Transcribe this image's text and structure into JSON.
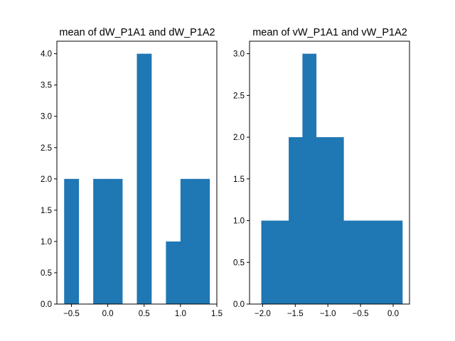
{
  "chart_data": [
    {
      "type": "bar",
      "title": "mean of dW_P1A1 and dW_P1A2",
      "xlabel": "",
      "ylabel": "",
      "xlim": [
        -0.7,
        1.5
      ],
      "ylim": [
        0,
        4.2
      ],
      "xticks": [
        -0.5,
        0.0,
        0.5,
        1.0,
        1.5
      ],
      "xtick_labels": [
        "−0.5",
        "0.0",
        "0.5",
        "1.0",
        "1.5"
      ],
      "yticks": [
        0.0,
        0.5,
        1.0,
        1.5,
        2.0,
        2.5,
        3.0,
        3.5,
        4.0
      ],
      "ytick_labels": [
        "0.0",
        "0.5",
        "1.0",
        "1.5",
        "2.0",
        "2.5",
        "3.0",
        "3.5",
        "4.0"
      ],
      "bins": [
        {
          "x0": -0.6,
          "x1": -0.4,
          "count": 2
        },
        {
          "x0": -0.4,
          "x1": -0.2,
          "count": 0
        },
        {
          "x0": -0.2,
          "x1": 0.0,
          "count": 2
        },
        {
          "x0": 0.0,
          "x1": 0.2,
          "count": 2
        },
        {
          "x0": 0.2,
          "x1": 0.4,
          "count": 0
        },
        {
          "x0": 0.4,
          "x1": 0.6,
          "count": 4
        },
        {
          "x0": 0.6,
          "x1": 0.8,
          "count": 0
        },
        {
          "x0": 0.8,
          "x1": 1.0,
          "count": 1
        },
        {
          "x0": 1.0,
          "x1": 1.2,
          "count": 2
        },
        {
          "x0": 1.2,
          "x1": 1.4,
          "count": 2
        }
      ],
      "color": "#1f77b4",
      "grid": false
    },
    {
      "type": "bar",
      "title": "mean of vW_P1A1 and vW_P1A2",
      "xlabel": "",
      "ylabel": "",
      "xlim": [
        -2.2,
        0.25
      ],
      "ylim": [
        0,
        3.15
      ],
      "xticks": [
        -2.0,
        -1.5,
        -1.0,
        -0.5,
        0.0
      ],
      "xtick_labels": [
        "−2.0",
        "−1.5",
        "−1.0",
        "−0.5",
        "0.0"
      ],
      "yticks": [
        0.0,
        0.5,
        1.0,
        1.5,
        2.0,
        2.5,
        3.0
      ],
      "ytick_labels": [
        "0.0",
        "0.5",
        "1.0",
        "1.5",
        "2.0",
        "2.5",
        "3.0"
      ],
      "bins": [
        {
          "x0": -2.02,
          "x1": -1.81,
          "count": 1
        },
        {
          "x0": -1.81,
          "x1": -1.6,
          "count": 1
        },
        {
          "x0": -1.6,
          "x1": -1.39,
          "count": 2
        },
        {
          "x0": -1.39,
          "x1": -1.18,
          "count": 3
        },
        {
          "x0": -1.18,
          "x1": -0.97,
          "count": 2
        },
        {
          "x0": -0.97,
          "x1": -0.76,
          "count": 2
        },
        {
          "x0": -0.76,
          "x1": -0.55,
          "count": 1
        },
        {
          "x0": -0.55,
          "x1": -0.34,
          "count": 1
        },
        {
          "x0": -0.34,
          "x1": -0.13,
          "count": 1
        },
        {
          "x0": -0.13,
          "x1": 0.14,
          "count": 1
        }
      ],
      "color": "#1f77b4",
      "grid": false
    }
  ]
}
